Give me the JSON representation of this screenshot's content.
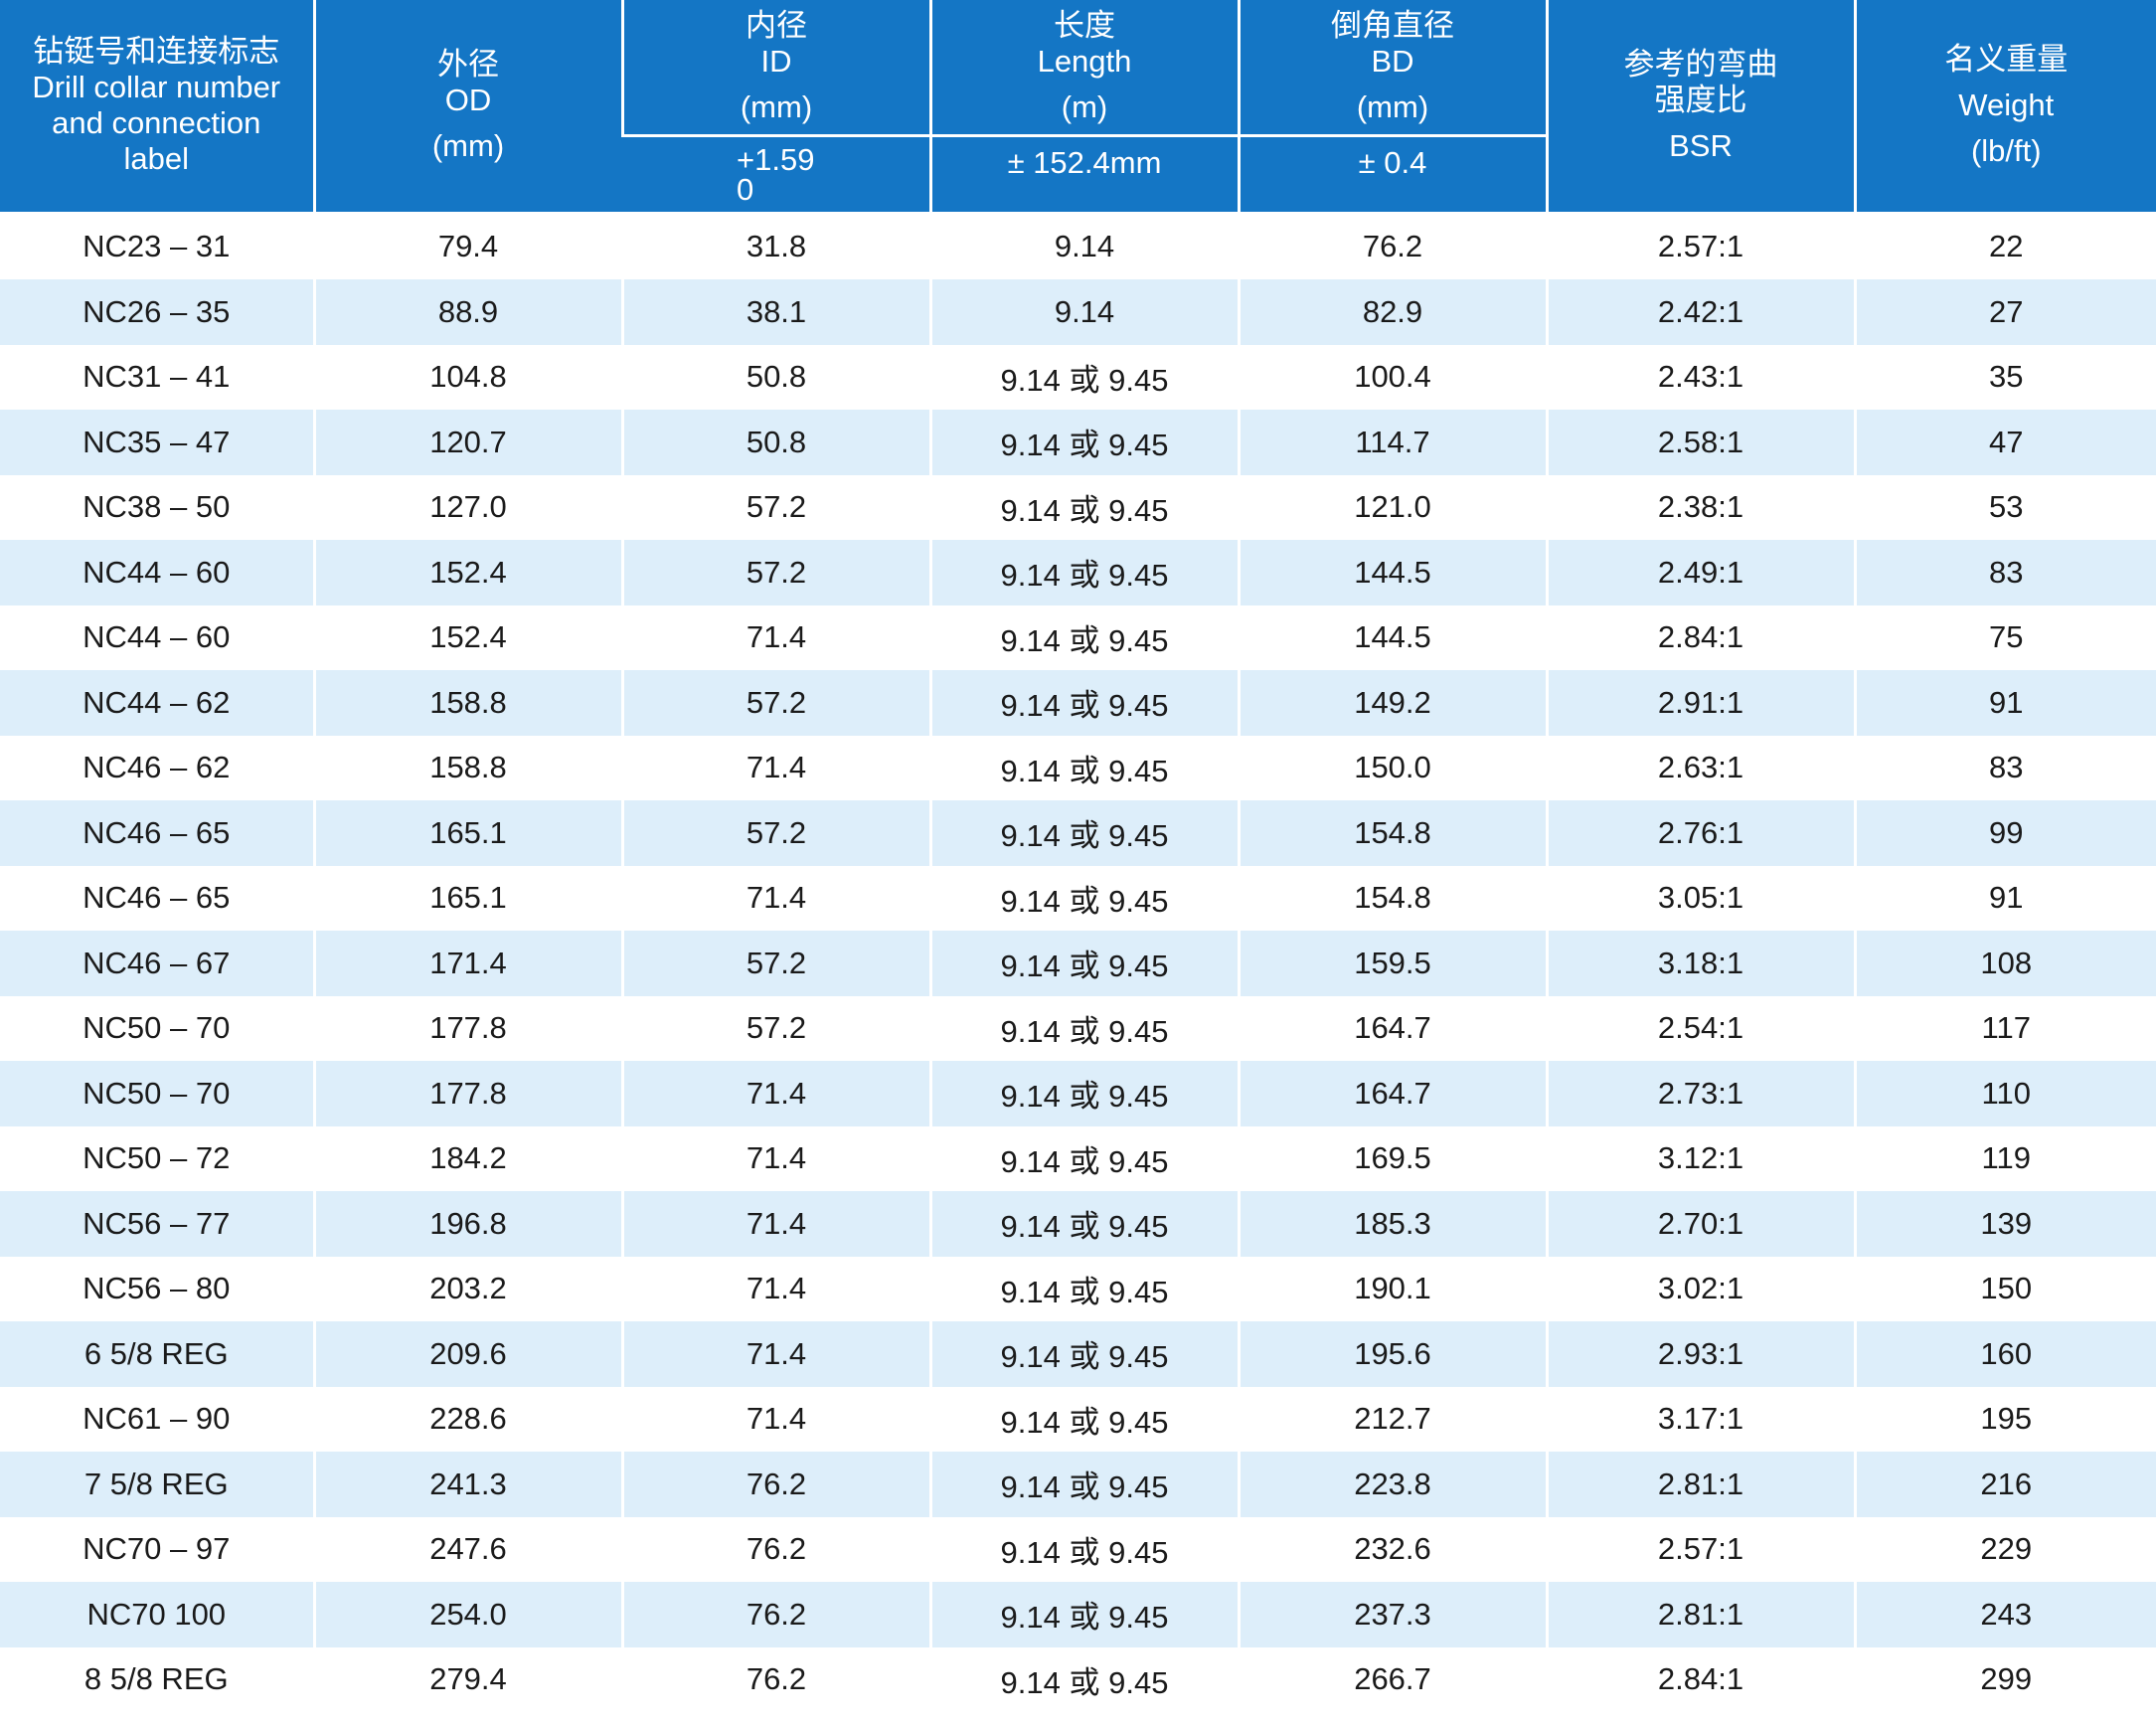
{
  "header": {
    "col1": {
      "zh": "钻铤号和连接标志",
      "en1": "Drill collar number",
      "en2": "and connection",
      "en3": "label"
    },
    "col2": {
      "zh": "外径",
      "en": "OD",
      "unit": "(mm)"
    },
    "col3": {
      "zh": "内径",
      "en": "ID",
      "unit": "(mm)",
      "tol_top": "+1.59",
      "tol_bottom": "0"
    },
    "col4": {
      "zh": "长度",
      "en": "Length",
      "unit": "(m)",
      "tol": "± 152.4mm"
    },
    "col5": {
      "zh": "倒角直径",
      "en": "BD",
      "unit": "(mm)",
      "tol": "± 0.4"
    },
    "col6": {
      "zh1": "参考的弯曲",
      "zh2": "强度比",
      "en": "BSR"
    },
    "col7": {
      "zh": "名义重量",
      "en": "Weight",
      "unit": "(lb/ft)"
    }
  },
  "rows": [
    [
      "NC23 – 31",
      "79.4",
      "31.8",
      "9.14",
      "76.2",
      "2.57:1",
      "22"
    ],
    [
      "NC26 – 35",
      "88.9",
      "38.1",
      "9.14",
      "82.9",
      "2.42:1",
      "27"
    ],
    [
      "NC31 – 41",
      "104.8",
      "50.8",
      "9.14 或 9.45",
      "100.4",
      "2.43:1",
      "35"
    ],
    [
      "NC35 – 47",
      "120.7",
      "50.8",
      "9.14 或 9.45",
      "114.7",
      "2.58:1",
      "47"
    ],
    [
      "NC38 – 50",
      "127.0",
      "57.2",
      "9.14 或 9.45",
      "121.0",
      "2.38:1",
      "53"
    ],
    [
      "NC44 – 60",
      "152.4",
      "57.2",
      "9.14 或 9.45",
      "144.5",
      "2.49:1",
      "83"
    ],
    [
      "NC44 – 60",
      "152.4",
      "71.4",
      "9.14 或 9.45",
      "144.5",
      "2.84:1",
      "75"
    ],
    [
      "NC44 – 62",
      "158.8",
      "57.2",
      "9.14 或 9.45",
      "149.2",
      "2.91:1",
      "91"
    ],
    [
      "NC46 – 62",
      "158.8",
      "71.4",
      "9.14 或 9.45",
      "150.0",
      "2.63:1",
      "83"
    ],
    [
      "NC46 – 65",
      "165.1",
      "57.2",
      "9.14 或 9.45",
      "154.8",
      "2.76:1",
      "99"
    ],
    [
      "NC46 – 65",
      "165.1",
      "71.4",
      "9.14 或 9.45",
      "154.8",
      "3.05:1",
      "91"
    ],
    [
      "NC46 – 67",
      "171.4",
      "57.2",
      "9.14 或 9.45",
      "159.5",
      "3.18:1",
      "108"
    ],
    [
      "NC50 – 70",
      "177.8",
      "57.2",
      "9.14 或 9.45",
      "164.7",
      "2.54:1",
      "117"
    ],
    [
      "NC50 – 70",
      "177.8",
      "71.4",
      "9.14 或 9.45",
      "164.7",
      "2.73:1",
      "110"
    ],
    [
      "NC50 – 72",
      "184.2",
      "71.4",
      "9.14 或 9.45",
      "169.5",
      "3.12:1",
      "119"
    ],
    [
      "NC56 – 77",
      "196.8",
      "71.4",
      "9.14 或 9.45",
      "185.3",
      "2.70:1",
      "139"
    ],
    [
      "NC56 – 80",
      "203.2",
      "71.4",
      "9.14 或 9.45",
      "190.1",
      "3.02:1",
      "150"
    ],
    [
      "6 5/8 REG",
      "209.6",
      "71.4",
      "9.14 或 9.45",
      "195.6",
      "2.93:1",
      "160"
    ],
    [
      "NC61 – 90",
      "228.6",
      "71.4",
      "9.14 或 9.45",
      "212.7",
      "3.17:1",
      "195"
    ],
    [
      "7 5/8 REG",
      "241.3",
      "76.2",
      "9.14 或 9.45",
      "223.8",
      "2.81:1",
      "216"
    ],
    [
      "NC70 – 97",
      "247.6",
      "76.2",
      "9.14 或 9.45",
      "232.6",
      "2.57:1",
      "229"
    ],
    [
      "NC70  100",
      "254.0",
      "76.2",
      "9.14 或 9.45",
      "237.3",
      "2.81:1",
      "243"
    ],
    [
      "8 5/8 REG",
      "279.4",
      "76.2",
      "9.14 或 9.45",
      "266.7",
      "2.84:1",
      "299"
    ]
  ],
  "colors": {
    "header_bg": "#1476c5",
    "header_text": "#ffffff",
    "stripe_bg": "#ddeefa",
    "row_bg": "#ffffff"
  }
}
